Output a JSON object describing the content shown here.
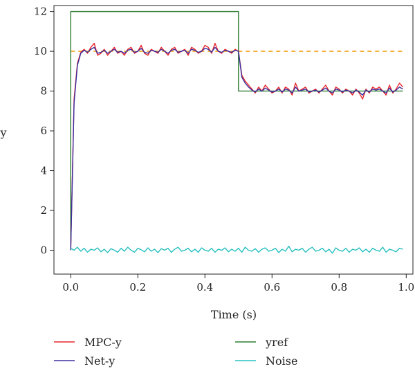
{
  "chart_data": {
    "type": "line",
    "xlabel": "Time (s)",
    "ylabel": "y",
    "xlim": [
      -0.05,
      1.02
    ],
    "ylim": [
      -1.2,
      12.3
    ],
    "x_ticks": [
      0.0,
      0.2,
      0.4,
      0.6,
      0.8,
      1.0
    ],
    "x_tick_labels": [
      "0.0",
      "0.2",
      "0.4",
      "0.6",
      "0.8",
      "1.0"
    ],
    "y_ticks": [
      0,
      2,
      4,
      6,
      8,
      10,
      12
    ],
    "y_tick_labels": [
      "0",
      "2",
      "4",
      "6",
      "8",
      "10",
      "12"
    ],
    "grid": false,
    "legend_position": "bottom",
    "legend": [
      {
        "label": "MPC-y",
        "color": "#e8282b"
      },
      {
        "label": "yref",
        "color": "#2e7d32"
      },
      {
        "label": "Net-y",
        "color": "#3b2fa0"
      },
      {
        "label": "Noise",
        "color": "#26bfbf"
      }
    ],
    "reference_line": {
      "y": 10,
      "color": "#f5a623",
      "style": "dashed"
    },
    "series": [
      {
        "name": "MPC-y",
        "color": "#e8282b",
        "x": [
          0.0,
          0.01,
          0.02,
          0.03,
          0.04,
          0.05,
          0.06,
          0.07,
          0.08,
          0.09,
          0.1,
          0.11,
          0.12,
          0.13,
          0.14,
          0.15,
          0.16,
          0.17,
          0.18,
          0.19,
          0.2,
          0.21,
          0.22,
          0.23,
          0.24,
          0.25,
          0.26,
          0.27,
          0.28,
          0.29,
          0.3,
          0.31,
          0.32,
          0.33,
          0.34,
          0.35,
          0.36,
          0.37,
          0.38,
          0.39,
          0.4,
          0.41,
          0.42,
          0.43,
          0.44,
          0.45,
          0.46,
          0.47,
          0.48,
          0.49,
          0.5,
          0.51,
          0.52,
          0.53,
          0.54,
          0.55,
          0.56,
          0.57,
          0.58,
          0.59,
          0.6,
          0.61,
          0.62,
          0.63,
          0.64,
          0.65,
          0.66,
          0.67,
          0.68,
          0.69,
          0.7,
          0.71,
          0.72,
          0.73,
          0.74,
          0.75,
          0.76,
          0.77,
          0.78,
          0.79,
          0.8,
          0.81,
          0.82,
          0.83,
          0.84,
          0.85,
          0.86,
          0.87,
          0.88,
          0.89,
          0.9,
          0.91,
          0.92,
          0.93,
          0.94,
          0.95,
          0.96,
          0.97,
          0.98,
          0.99
        ],
        "y": [
          0.0,
          7.6,
          9.4,
          9.95,
          10.1,
          9.9,
          10.2,
          10.4,
          9.8,
          9.9,
          10.1,
          9.8,
          10.0,
          10.2,
          9.9,
          10.0,
          9.8,
          10.1,
          10.2,
          9.9,
          10.0,
          10.3,
          9.9,
          9.8,
          10.1,
          10.0,
          9.9,
          10.2,
          10.0,
          9.8,
          10.1,
          10.2,
          9.9,
          10.0,
          10.1,
          9.8,
          10.2,
          10.1,
          9.9,
          10.0,
          10.3,
          10.2,
          9.9,
          10.4,
          10.0,
          9.9,
          10.1,
          10.0,
          9.9,
          10.1,
          10.0,
          8.8,
          8.5,
          8.3,
          8.1,
          7.9,
          8.2,
          8.0,
          8.3,
          8.1,
          7.9,
          8.0,
          8.2,
          7.9,
          8.2,
          8.1,
          7.8,
          8.4,
          8.0,
          8.1,
          8.2,
          7.9,
          8.0,
          8.1,
          7.9,
          8.1,
          8.3,
          8.0,
          7.8,
          8.2,
          8.1,
          7.9,
          8.1,
          8.0,
          7.8,
          8.1,
          7.9,
          7.6,
          8.1,
          7.9,
          8.2,
          8.1,
          8.2,
          8.0,
          7.8,
          8.3,
          7.9,
          8.1,
          8.4,
          8.2
        ]
      },
      {
        "name": "Net-y",
        "color": "#3b2fa0",
        "x": [
          0.0,
          0.01,
          0.02,
          0.03,
          0.04,
          0.05,
          0.06,
          0.07,
          0.08,
          0.09,
          0.1,
          0.11,
          0.12,
          0.13,
          0.14,
          0.15,
          0.16,
          0.17,
          0.18,
          0.19,
          0.2,
          0.21,
          0.22,
          0.23,
          0.24,
          0.25,
          0.26,
          0.27,
          0.28,
          0.29,
          0.3,
          0.31,
          0.32,
          0.33,
          0.34,
          0.35,
          0.36,
          0.37,
          0.38,
          0.39,
          0.4,
          0.41,
          0.42,
          0.43,
          0.44,
          0.45,
          0.46,
          0.47,
          0.48,
          0.49,
          0.5,
          0.51,
          0.52,
          0.53,
          0.54,
          0.55,
          0.56,
          0.57,
          0.58,
          0.59,
          0.6,
          0.61,
          0.62,
          0.63,
          0.64,
          0.65,
          0.66,
          0.67,
          0.68,
          0.69,
          0.7,
          0.71,
          0.72,
          0.73,
          0.74,
          0.75,
          0.76,
          0.77,
          0.78,
          0.79,
          0.8,
          0.81,
          0.82,
          0.83,
          0.84,
          0.85,
          0.86,
          0.87,
          0.88,
          0.89,
          0.9,
          0.91,
          0.92,
          0.93,
          0.94,
          0.95,
          0.96,
          0.97,
          0.98,
          0.99
        ],
        "y": [
          0.0,
          7.4,
          9.3,
          9.9,
          10.05,
          9.95,
          10.1,
          10.2,
          9.9,
          9.95,
          10.05,
          9.9,
          10.0,
          10.1,
          9.95,
          10.0,
          9.9,
          10.05,
          10.1,
          9.95,
          10.0,
          10.15,
          9.95,
          9.9,
          10.05,
          10.0,
          9.95,
          10.1,
          10.0,
          9.9,
          10.05,
          10.1,
          9.95,
          10.0,
          10.05,
          9.9,
          10.1,
          10.05,
          9.95,
          10.0,
          10.15,
          10.1,
          9.95,
          10.2,
          10.0,
          9.95,
          10.05,
          10.0,
          9.95,
          10.05,
          10.0,
          8.7,
          8.4,
          8.2,
          8.05,
          7.95,
          8.1,
          8.0,
          8.15,
          8.05,
          7.95,
          8.0,
          8.1,
          7.95,
          8.1,
          8.05,
          7.9,
          8.2,
          8.0,
          8.05,
          8.1,
          7.95,
          8.0,
          8.05,
          7.95,
          8.05,
          8.15,
          8.0,
          7.9,
          8.1,
          8.05,
          7.95,
          8.05,
          8.0,
          7.9,
          8.05,
          7.95,
          7.8,
          8.05,
          7.95,
          8.1,
          8.05,
          8.1,
          8.0,
          7.9,
          8.15,
          7.95,
          8.05,
          8.2,
          8.1
        ]
      },
      {
        "name": "yref",
        "color": "#2e7d32",
        "x": [
          0.0,
          0.0,
          0.5,
          0.5,
          0.99
        ],
        "y": [
          0,
          12,
          12,
          8,
          8
        ]
      },
      {
        "name": "Noise",
        "color": "#26bfbf",
        "x": [
          0.0,
          0.01,
          0.02,
          0.03,
          0.04,
          0.05,
          0.06,
          0.07,
          0.08,
          0.09,
          0.1,
          0.11,
          0.12,
          0.13,
          0.14,
          0.15,
          0.16,
          0.17,
          0.18,
          0.19,
          0.2,
          0.21,
          0.22,
          0.23,
          0.24,
          0.25,
          0.26,
          0.27,
          0.28,
          0.29,
          0.3,
          0.31,
          0.32,
          0.33,
          0.34,
          0.35,
          0.36,
          0.37,
          0.38,
          0.39,
          0.4,
          0.41,
          0.42,
          0.43,
          0.44,
          0.45,
          0.46,
          0.47,
          0.48,
          0.49,
          0.5,
          0.51,
          0.52,
          0.53,
          0.54,
          0.55,
          0.56,
          0.57,
          0.58,
          0.59,
          0.6,
          0.61,
          0.62,
          0.63,
          0.64,
          0.65,
          0.66,
          0.67,
          0.68,
          0.69,
          0.7,
          0.71,
          0.72,
          0.73,
          0.74,
          0.75,
          0.76,
          0.77,
          0.78,
          0.79,
          0.8,
          0.81,
          0.82,
          0.83,
          0.84,
          0.85,
          0.86,
          0.87,
          0.88,
          0.89,
          0.9,
          0.91,
          0.92,
          0.93,
          0.94,
          0.95,
          0.96,
          0.97,
          0.98,
          0.99
        ],
        "y": [
          0.1,
          0.0,
          0.15,
          -0.05,
          0.1,
          -0.1,
          0.05,
          0.0,
          0.12,
          -0.08,
          0.05,
          -0.12,
          0.08,
          0.0,
          -0.1,
          0.1,
          -0.05,
          0.15,
          0.0,
          -0.1,
          0.1,
          0.02,
          -0.08,
          0.12,
          -0.05,
          0.05,
          -0.12,
          0.08,
          0.0,
          0.1,
          -0.1,
          0.05,
          0.15,
          -0.05,
          0.0,
          0.1,
          -0.08,
          0.05,
          -0.1,
          0.12,
          0.0,
          -0.05,
          0.1,
          -0.1,
          0.05,
          0.0,
          0.12,
          -0.08,
          0.05,
          -0.05,
          0.1,
          -0.1,
          0.15,
          0.0,
          -0.05,
          0.08,
          -0.1,
          0.05,
          0.12,
          -0.05,
          0.0,
          0.1,
          -0.12,
          0.05,
          -0.05,
          0.2,
          -0.08,
          0.05,
          0.0,
          0.1,
          -0.1,
          0.05,
          0.15,
          -0.05,
          0.0,
          0.1,
          -0.08,
          0.05,
          -0.15,
          0.12,
          0.0,
          -0.05,
          0.1,
          -0.1,
          0.05,
          0.0,
          0.12,
          -0.08,
          0.05,
          -0.1,
          0.1,
          0.0,
          -0.05,
          0.15,
          -0.1,
          0.05,
          0.0,
          -0.08,
          0.1,
          0.05
        ]
      }
    ]
  }
}
